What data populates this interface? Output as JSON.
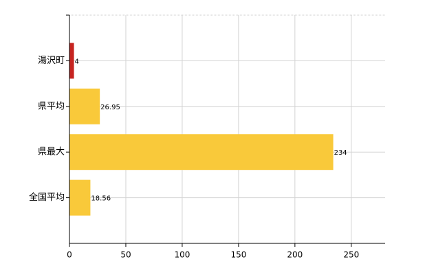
{
  "chart_data": {
    "type": "bar",
    "orientation": "horizontal",
    "categories": [
      "湯沢町",
      "県平均",
      "県最大",
      "全国平均"
    ],
    "values": [
      4,
      26.95,
      234,
      18.56
    ],
    "colors": [
      "#c62420",
      "#f9c93a",
      "#f9c93a",
      "#f9c93a"
    ],
    "xlim": [
      0,
      280
    ],
    "xticks": [
      0,
      50,
      100,
      150,
      200,
      250
    ],
    "grid": true
  }
}
